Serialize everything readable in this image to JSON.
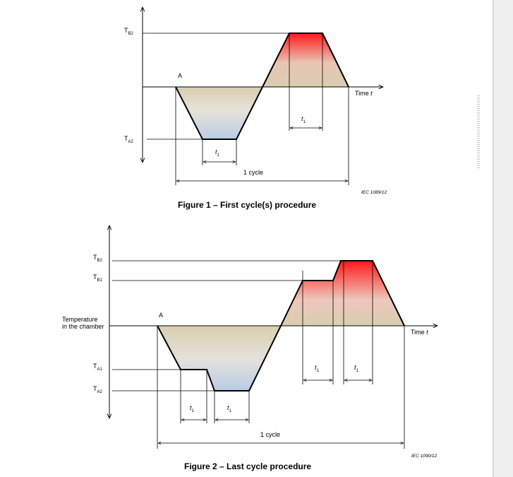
{
  "figure1": {
    "caption": "Figure 1 – First cycle(s) procedure",
    "iec_ref": "IEC 1089/12",
    "labels": {
      "tb2_main": "T",
      "tb2_sub": "B2",
      "ta2_main": "T",
      "ta2_sub": "A2",
      "point_a": "A",
      "time_label": "Time ",
      "time_var": "t",
      "t1_main": "t",
      "t1_sub": "1",
      "cycle": "1 cycle"
    }
  },
  "figure2": {
    "caption": "Figure 2 – Last cycle procedure",
    "iec_ref": "IEC 1090/12",
    "labels": {
      "tb2_main": "T",
      "tb2_sub": "B2",
      "tb1_main": "T",
      "tb1_sub": "B1",
      "ta1_main": "T",
      "ta1_sub": "A1",
      "ta2_main": "T",
      "ta2_sub": "A2",
      "chamber_line1": "Temperature",
      "chamber_line2": "in the chamber",
      "point_a": "A",
      "time_label": "Time ",
      "time_var": "t",
      "t1_main": "t",
      "t1_sub": "1",
      "cycle": "1 cycle"
    }
  },
  "colors": {
    "hot": "#ff1a1a",
    "neutral": "#d9ceb0",
    "cold": "#bcd0e6",
    "line": "#000000"
  }
}
